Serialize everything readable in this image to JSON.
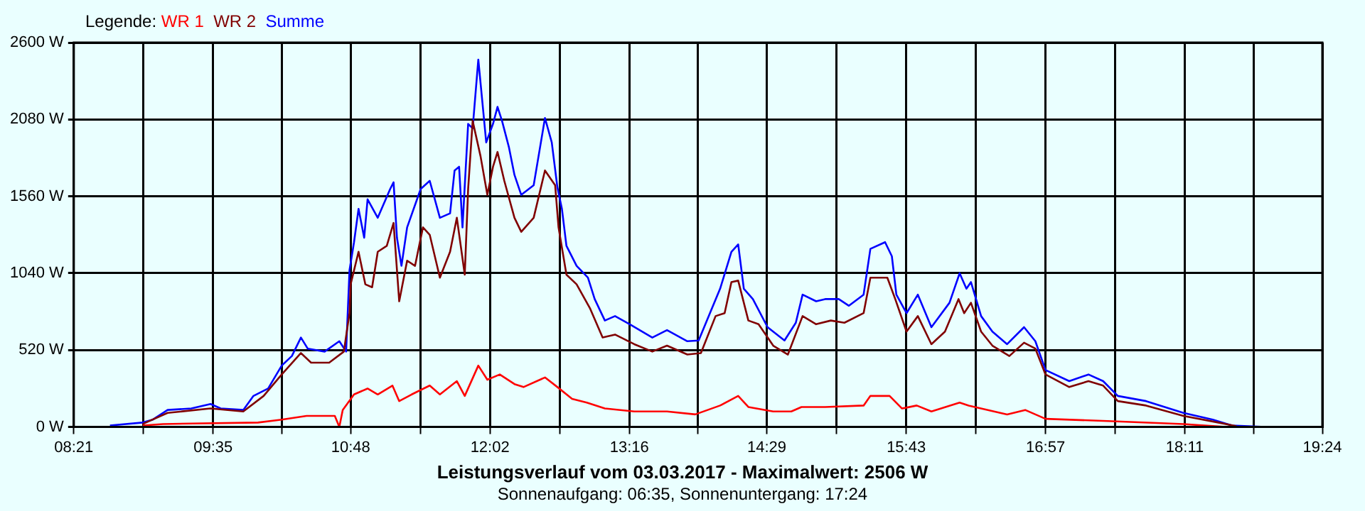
{
  "chart_data": {
    "type": "line",
    "title": "Leistungsverlauf vom 03.03.2017 - Maximalwert: 2506 W",
    "subtitle": "Sonnenaufgang: 06:35, Sonnenuntergang: 17:24",
    "legend_title": "Legende:",
    "legend": "top left",
    "grid": true,
    "marker": "none",
    "line_style": "solid",
    "xlim": [
      8.35,
      19.4
    ],
    "xticks": [
      {
        "value": 8.35,
        "label": "08:21"
      },
      {
        "value": 8.967,
        "label": null
      },
      {
        "value": 9.583,
        "label": "09:35"
      },
      {
        "value": 10.192,
        "label": null
      },
      {
        "value": 10.8,
        "label": "10:48"
      },
      {
        "value": 11.417,
        "label": null
      },
      {
        "value": 12.033,
        "label": "12:02"
      },
      {
        "value": 12.65,
        "label": null
      },
      {
        "value": 13.267,
        "label": "13:16"
      },
      {
        "value": 13.875,
        "label": null
      },
      {
        "value": 14.483,
        "label": "14:29"
      },
      {
        "value": 15.1,
        "label": null
      },
      {
        "value": 15.717,
        "label": "15:43"
      },
      {
        "value": 16.333,
        "label": null
      },
      {
        "value": 16.95,
        "label": "16:57"
      },
      {
        "value": 17.567,
        "label": null
      },
      {
        "value": 18.183,
        "label": "18:11"
      },
      {
        "value": 18.792,
        "label": null
      },
      {
        "value": 19.4,
        "label": "19:24"
      }
    ],
    "ylim": [
      0,
      2600
    ],
    "yticks": [
      {
        "value": 0,
        "label": "0 W"
      },
      {
        "value": 520,
        "label": "520 W"
      },
      {
        "value": 1040,
        "label": "1040 W"
      },
      {
        "value": 1560,
        "label": "1560 W"
      },
      {
        "value": 2080,
        "label": "2080 W"
      },
      {
        "value": 2600,
        "label": "2600 W"
      }
    ],
    "series": [
      {
        "name": "WR 1",
        "color": "#ff0000",
        "x": [
          8.96,
          9.14,
          9.98,
          10.19,
          10.41,
          10.66,
          10.7,
          10.73,
          10.83,
          10.95,
          11.04,
          11.17,
          11.23,
          11.34,
          11.5,
          11.59,
          11.74,
          11.81,
          11.93,
          12.01,
          12.12,
          12.25,
          12.33,
          12.52,
          12.63,
          12.76,
          12.89,
          13.05,
          13.31,
          13.6,
          13.85,
          14.07,
          14.23,
          14.32,
          14.54,
          14.7,
          14.79,
          15.0,
          15.34,
          15.4,
          15.57,
          15.68,
          15.81,
          15.94,
          16.19,
          16.27,
          16.44,
          16.61,
          16.77,
          16.95,
          17.5,
          18.17,
          18.55
        ],
        "values": [
          10,
          20,
          30,
          50,
          75,
          75,
          0,
          115,
          220,
          260,
          220,
          280,
          175,
          220,
          280,
          220,
          310,
          210,
          415,
          320,
          355,
          290,
          270,
          335,
          270,
          190,
          165,
          125,
          105,
          105,
          85,
          145,
          210,
          135,
          105,
          105,
          135,
          135,
          145,
          210,
          210,
          125,
          145,
          105,
          165,
          145,
          115,
          85,
          115,
          55,
          40,
          20,
          0
        ]
      },
      {
        "name": "WR 2",
        "color": "#800000",
        "x": [
          8.96,
          9.18,
          9.56,
          9.85,
          10.03,
          10.19,
          10.36,
          10.45,
          10.61,
          10.74,
          10.79,
          10.8,
          10.87,
          10.93,
          10.99,
          11.04,
          11.12,
          11.18,
          11.23,
          11.3,
          11.37,
          11.44,
          11.5,
          11.59,
          11.68,
          11.74,
          11.81,
          11.84,
          11.88,
          11.95,
          12.01,
          12.06,
          12.1,
          12.16,
          12.25,
          12.31,
          12.42,
          12.52,
          12.61,
          12.64,
          12.71,
          12.8,
          12.92,
          13.03,
          13.14,
          13.31,
          13.47,
          13.6,
          13.78,
          13.9,
          14.03,
          14.11,
          14.17,
          14.23,
          14.32,
          14.41,
          14.54,
          14.67,
          14.8,
          14.92,
          15.05,
          15.17,
          15.34,
          15.4,
          15.55,
          15.62,
          15.72,
          15.82,
          15.94,
          16.06,
          16.18,
          16.23,
          16.29,
          16.38,
          16.48,
          16.63,
          16.76,
          16.86,
          16.95,
          17.16,
          17.33,
          17.46,
          17.59,
          17.84,
          18.17,
          18.48,
          18.64
        ],
        "values": [
          20,
          95,
          125,
          105,
          210,
          355,
          500,
          435,
          435,
          510,
          770,
          965,
          1185,
          965,
          945,
          1185,
          1225,
          1380,
          850,
          1125,
          1090,
          1350,
          1300,
          1010,
          1185,
          1415,
          1030,
          1610,
          2070,
          1830,
          1570,
          1760,
          1860,
          1665,
          1415,
          1320,
          1415,
          1735,
          1635,
          1350,
          1030,
          965,
          800,
          605,
          625,
          560,
          510,
          550,
          490,
          500,
          750,
          770,
          980,
          990,
          720,
          695,
          550,
          490,
          750,
          695,
          720,
          705,
          770,
          1010,
          1010,
          865,
          645,
          750,
          560,
          645,
          865,
          770,
          840,
          645,
          550,
          480,
          570,
          530,
          355,
          270,
          310,
          280,
          175,
          145,
          75,
          30,
          5
        ]
      },
      {
        "name": "Summe",
        "color": "#0000ff",
        "x": [
          8.67,
          8.96,
          9.05,
          9.18,
          9.39,
          9.56,
          9.65,
          9.85,
          9.94,
          10.07,
          10.19,
          10.28,
          10.36,
          10.42,
          10.57,
          10.7,
          10.76,
          10.79,
          10.83,
          10.87,
          10.92,
          10.95,
          11.04,
          11.15,
          11.18,
          11.21,
          11.25,
          11.3,
          11.42,
          11.5,
          11.59,
          11.68,
          11.72,
          11.76,
          11.79,
          11.84,
          11.88,
          11.93,
          12.0,
          12.06,
          12.1,
          12.14,
          12.2,
          12.25,
          12.31,
          12.42,
          12.52,
          12.58,
          12.63,
          12.67,
          12.71,
          12.8,
          12.9,
          12.96,
          13.05,
          13.14,
          13.27,
          13.47,
          13.6,
          13.78,
          13.88,
          13.98,
          14.07,
          14.17,
          14.23,
          14.28,
          14.36,
          14.49,
          14.64,
          14.74,
          14.8,
          14.92,
          15.0,
          15.12,
          15.21,
          15.34,
          15.4,
          15.53,
          15.59,
          15.63,
          15.72,
          15.82,
          15.94,
          16.1,
          16.19,
          16.25,
          16.29,
          16.38,
          16.48,
          16.61,
          16.76,
          16.86,
          16.95,
          17.16,
          17.33,
          17.46,
          17.59,
          17.84,
          18.17,
          18.43,
          18.6,
          18.92
        ],
        "values": [
          10,
          30,
          50,
          115,
          125,
          155,
          125,
          115,
          210,
          260,
          415,
          480,
          605,
          530,
          510,
          580,
          510,
          1060,
          1250,
          1475,
          1280,
          1540,
          1415,
          1610,
          1655,
          1280,
          1090,
          1350,
          1610,
          1665,
          1415,
          1445,
          1735,
          1760,
          1350,
          2050,
          2020,
          2485,
          1925,
          2050,
          2165,
          2070,
          1895,
          1705,
          1570,
          1635,
          2090,
          1925,
          1620,
          1475,
          1225,
          1090,
          1010,
          865,
          720,
          750,
          695,
          605,
          655,
          580,
          585,
          770,
          935,
          1185,
          1235,
          935,
          865,
          675,
          585,
          705,
          895,
          850,
          865,
          865,
          820,
          895,
          1205,
          1250,
          1155,
          895,
          770,
          895,
          675,
          840,
          1040,
          935,
          980,
          750,
          645,
          560,
          675,
          580,
          385,
          310,
          355,
          310,
          210,
          175,
          95,
          50,
          10,
          0
        ]
      }
    ]
  }
}
